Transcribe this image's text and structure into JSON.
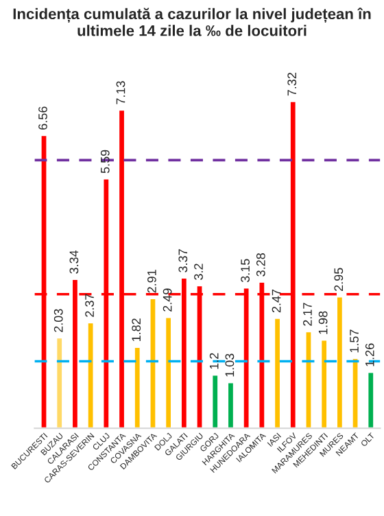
{
  "chart_data": {
    "type": "bar",
    "title": "Incidența cumulată a cazurilor la nivel județean în ultimele 14 zile la ‰ de locuitori",
    "categories": [
      "BUCURESTI",
      "BUZAU",
      "CALARASI",
      "CARAS-SEVERIN",
      "CLUJ",
      "CONSTANTA",
      "COVASNA",
      "DAMBOVITA",
      "DOLJ",
      "GALATI",
      "GIURGIU",
      "GORJ",
      "HARGHITA",
      "HUNEDOARA",
      "IALOMITA",
      "IASI",
      "ILFOV",
      "MARAMURES",
      "MEHEDINTI",
      "MURES",
      "NEAMT",
      "OLT"
    ],
    "values": [
      6.56,
      2.03,
      3.34,
      2.37,
      5.59,
      7.13,
      1.82,
      2.91,
      2.49,
      3.37,
      3.2,
      1.2,
      1.03,
      3.15,
      3.28,
      2.47,
      7.32,
      2.17,
      1.98,
      2.95,
      1.57,
      1.26
    ],
    "colors": [
      "#ff0000",
      "#ffd966",
      "#ff0000",
      "#ffc000",
      "#ff0000",
      "#ff0000",
      "#ffc000",
      "#ffc000",
      "#ffc000",
      "#ff0000",
      "#ff0000",
      "#00b050",
      "#00b050",
      "#ff0000",
      "#ff0000",
      "#ffc000",
      "#ff0000",
      "#ffc000",
      "#ffc000",
      "#ffc000",
      "#ffc000",
      "#00b050"
    ],
    "data_labels": true,
    "ref_lines": [
      {
        "axis": "y",
        "value": 6,
        "color": "#7030a0",
        "line_style": "dashed"
      },
      {
        "axis": "y",
        "value": 3,
        "color": "#ff0000",
        "line_style": "dashed"
      },
      {
        "axis": "y",
        "value": 1.5,
        "color": "#00b0f0",
        "line_style": "dashed"
      }
    ],
    "grid": false,
    "legend": false
  }
}
